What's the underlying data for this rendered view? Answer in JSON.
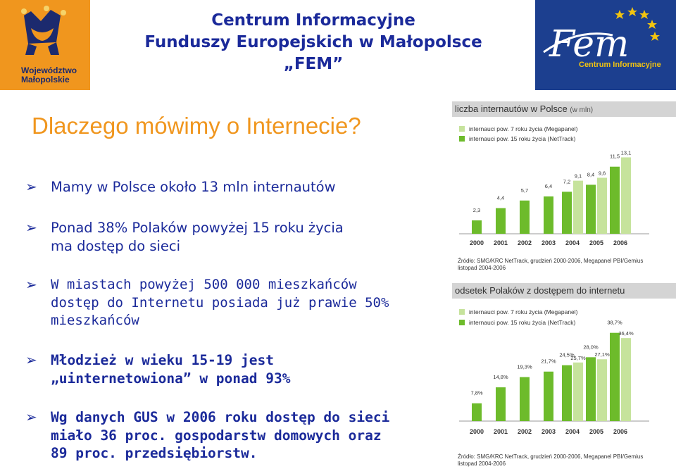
{
  "header": {
    "title_lines": [
      "Centrum Informacyjne",
      "Funduszy Europejskich w Małopolsce",
      "„FEM”"
    ],
    "left_logo": {
      "text_lines": [
        "Województwo",
        "Małopolskie"
      ]
    },
    "right_logo": {
      "wordmark": "Fem",
      "text": "Centrum Informacyjne"
    }
  },
  "subtitle": "Dlaczego mówimy o Internecie?",
  "bullets": [
    {
      "icon": "arrow-bullet-icon",
      "lines": [
        "Mamy w Polsce około 13 mln internautów"
      ]
    },
    {
      "icon": "arrow-bullet-icon",
      "lines": [
        "Ponad 38% Polaków powyżej 15 roku życia",
        "ma dostęp do sieci"
      ]
    },
    {
      "icon": "arrow-bullet-icon",
      "lines": [
        "W miastach powyżej 500 000 mieszkańców",
        "dostęp do Internetu posiada już prawie 50%",
        "mieszkańców"
      ]
    },
    {
      "icon": "arrow-bullet-icon",
      "lines": [
        "Młodzież w wieku 15-19 jest",
        "„uinternetowiona” w ponad 93%"
      ]
    },
    {
      "icon": "arrow-bullet-icon",
      "lines": [
        "Wg danych GUS w 2006 roku dostęp do sieci",
        "miało 36 proc. gospodarstw domowych oraz",
        "89 proc. przedsiębiorstw."
      ]
    }
  ],
  "colors": {
    "title_blue": "#1b2a9a",
    "orange": "#f0961e",
    "fem_blue": "#1c3f8f",
    "bar_dark": "#6dbb2b",
    "bar_light": "#c6e39c"
  },
  "chart_data": [
    {
      "type": "bar",
      "title": "liczba internautów w Polsce",
      "title_unit": "(w mln)",
      "categories": [
        "2000",
        "2001",
        "2002",
        "2003",
        "2004",
        "2005",
        "2006"
      ],
      "series": [
        {
          "name": "internauci pow. 15 roku życia (NetTrack)",
          "color": "#6dbb2b",
          "values": [
            2.3,
            4.4,
            5.7,
            6.4,
            7.2,
            8.4,
            11.5
          ]
        },
        {
          "name": "internauci pow. 7 roku życia (Megapanel)",
          "color": "#c6e39c",
          "values": [
            null,
            null,
            null,
            null,
            9.1,
            9.6,
            13.1
          ]
        }
      ],
      "value_labels": [
        [
          "2,3",
          "4,4",
          "5,7",
          "6,4",
          "7,2",
          "8,4",
          "11,5"
        ],
        [
          null,
          null,
          null,
          null,
          "9,1",
          "9,6",
          "13,1"
        ]
      ],
      "ylim": [
        0,
        14
      ],
      "source_lines": [
        "Źródło: SMG/KRC NetTrack, grudzień 2000-2006, Megapanel PBI/Gemius",
        "listopad 2004-2006"
      ]
    },
    {
      "type": "bar",
      "title": "odsetek Polaków z dostępem do internetu",
      "categories": [
        "2000",
        "2001",
        "2002",
        "2003",
        "2004",
        "2005",
        "2006"
      ],
      "series": [
        {
          "name": "internauci pow. 15 roku życia (NetTrack)",
          "color": "#6dbb2b",
          "values": [
            7.8,
            14.8,
            19.3,
            21.7,
            24.5,
            28.0,
            38.7
          ]
        },
        {
          "name": "internauci pow. 7 roku życia (Megapanel)",
          "color": "#c6e39c",
          "values": [
            null,
            null,
            null,
            null,
            25.7,
            27.1,
            36.4
          ]
        }
      ],
      "value_labels": [
        [
          "7,8%",
          "14,8%",
          "19,3%",
          "21,7%",
          "24,5%",
          "28,0%",
          "38,7%"
        ],
        [
          null,
          null,
          null,
          null,
          "25,7%",
          "27,1%",
          "36,4%"
        ]
      ],
      "ylim": [
        0,
        42
      ],
      "source_lines": [
        "Źródło: SMG/KRC NetTrack, grudzień 2000-2006, Megapanel PBI/Gemius",
        "listopad 2004-2006"
      ]
    }
  ]
}
